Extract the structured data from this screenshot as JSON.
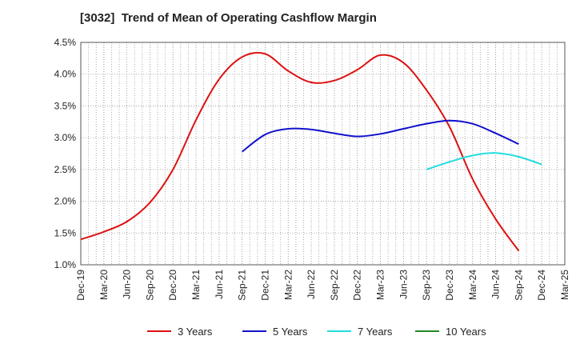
{
  "chart_data": {
    "type": "line",
    "title": "[3032]  Trend of Mean of Operating Cashflow Margin",
    "xlabel": "",
    "ylabel": "",
    "ylim": [
      1.0,
      4.5
    ],
    "y_ticks": [
      "1.0%",
      "1.5%",
      "2.0%",
      "2.5%",
      "3.0%",
      "3.5%",
      "4.0%",
      "4.5%"
    ],
    "x_tick_labels": [
      "Dec-19",
      "Mar-20",
      "Jun-20",
      "Sep-20",
      "Dec-20",
      "Mar-21",
      "Jun-21",
      "Sep-21",
      "Dec-21",
      "Mar-22",
      "Jun-22",
      "Sep-22",
      "Dec-22",
      "Mar-23",
      "Jun-23",
      "Sep-23",
      "Dec-23",
      "Mar-24",
      "Jun-24",
      "Sep-24",
      "Dec-24",
      "Mar-25"
    ],
    "grid": true,
    "legend_position": "bottom",
    "series": [
      {
        "name": "3 Years",
        "color": "#dd1111",
        "start_index": 0,
        "values": [
          1.4,
          1.52,
          1.68,
          1.98,
          2.5,
          3.28,
          3.92,
          4.27,
          4.32,
          4.05,
          3.87,
          3.9,
          4.07,
          4.3,
          4.18,
          3.75,
          3.17,
          2.35,
          1.72,
          1.22
        ]
      },
      {
        "name": "5 Years",
        "color": "#1111cc",
        "start_index": 7,
        "values": [
          2.78,
          3.05,
          3.14,
          3.13,
          3.07,
          3.02,
          3.06,
          3.14,
          3.22,
          3.27,
          3.22,
          3.07,
          2.9
        ]
      },
      {
        "name": "7 Years",
        "color": "#22dddd",
        "start_index": 15,
        "values": [
          2.5,
          2.62,
          2.72,
          2.76,
          2.7,
          2.58
        ]
      },
      {
        "name": "10 Years",
        "color": "#228822",
        "start_index": 0,
        "values": []
      }
    ]
  }
}
